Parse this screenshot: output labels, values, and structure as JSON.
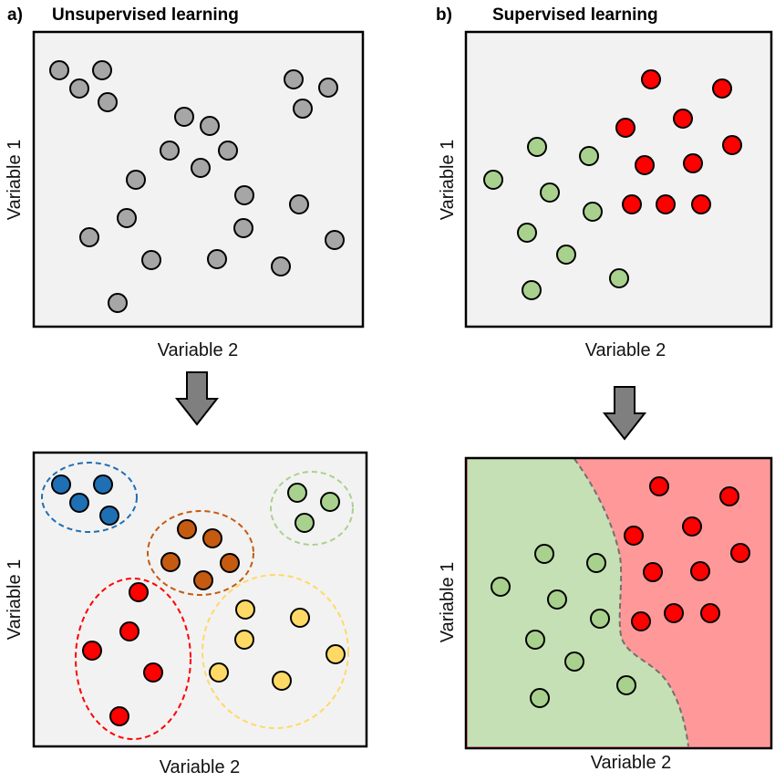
{
  "panel_a": {
    "label": "a)",
    "title": "Unsupervised learning",
    "xlabel": "Variable 2",
    "ylabel": "Variable 1"
  },
  "panel_b": {
    "label": "b)",
    "title": "Supervised learning",
    "xlabel": "Variable 2",
    "ylabel": "Variable 1"
  },
  "panel_c": {
    "xlabel": "Variable 2",
    "ylabel": "Variable 1"
  },
  "panel_d": {
    "xlabel": "Variable 2",
    "ylabel": "Variable 1"
  },
  "colors": {
    "background": "#f2f2f2",
    "unlabeled": "#a6a6a6",
    "blue": "#1f6fb4",
    "green": "#a9d18e",
    "brown": "#c55a11",
    "red": "#ff0000",
    "yellow": "#ffd966",
    "green_region": "#c5e0b4",
    "red_region": "#ff9999",
    "arrow": "#7f7f7f"
  }
}
